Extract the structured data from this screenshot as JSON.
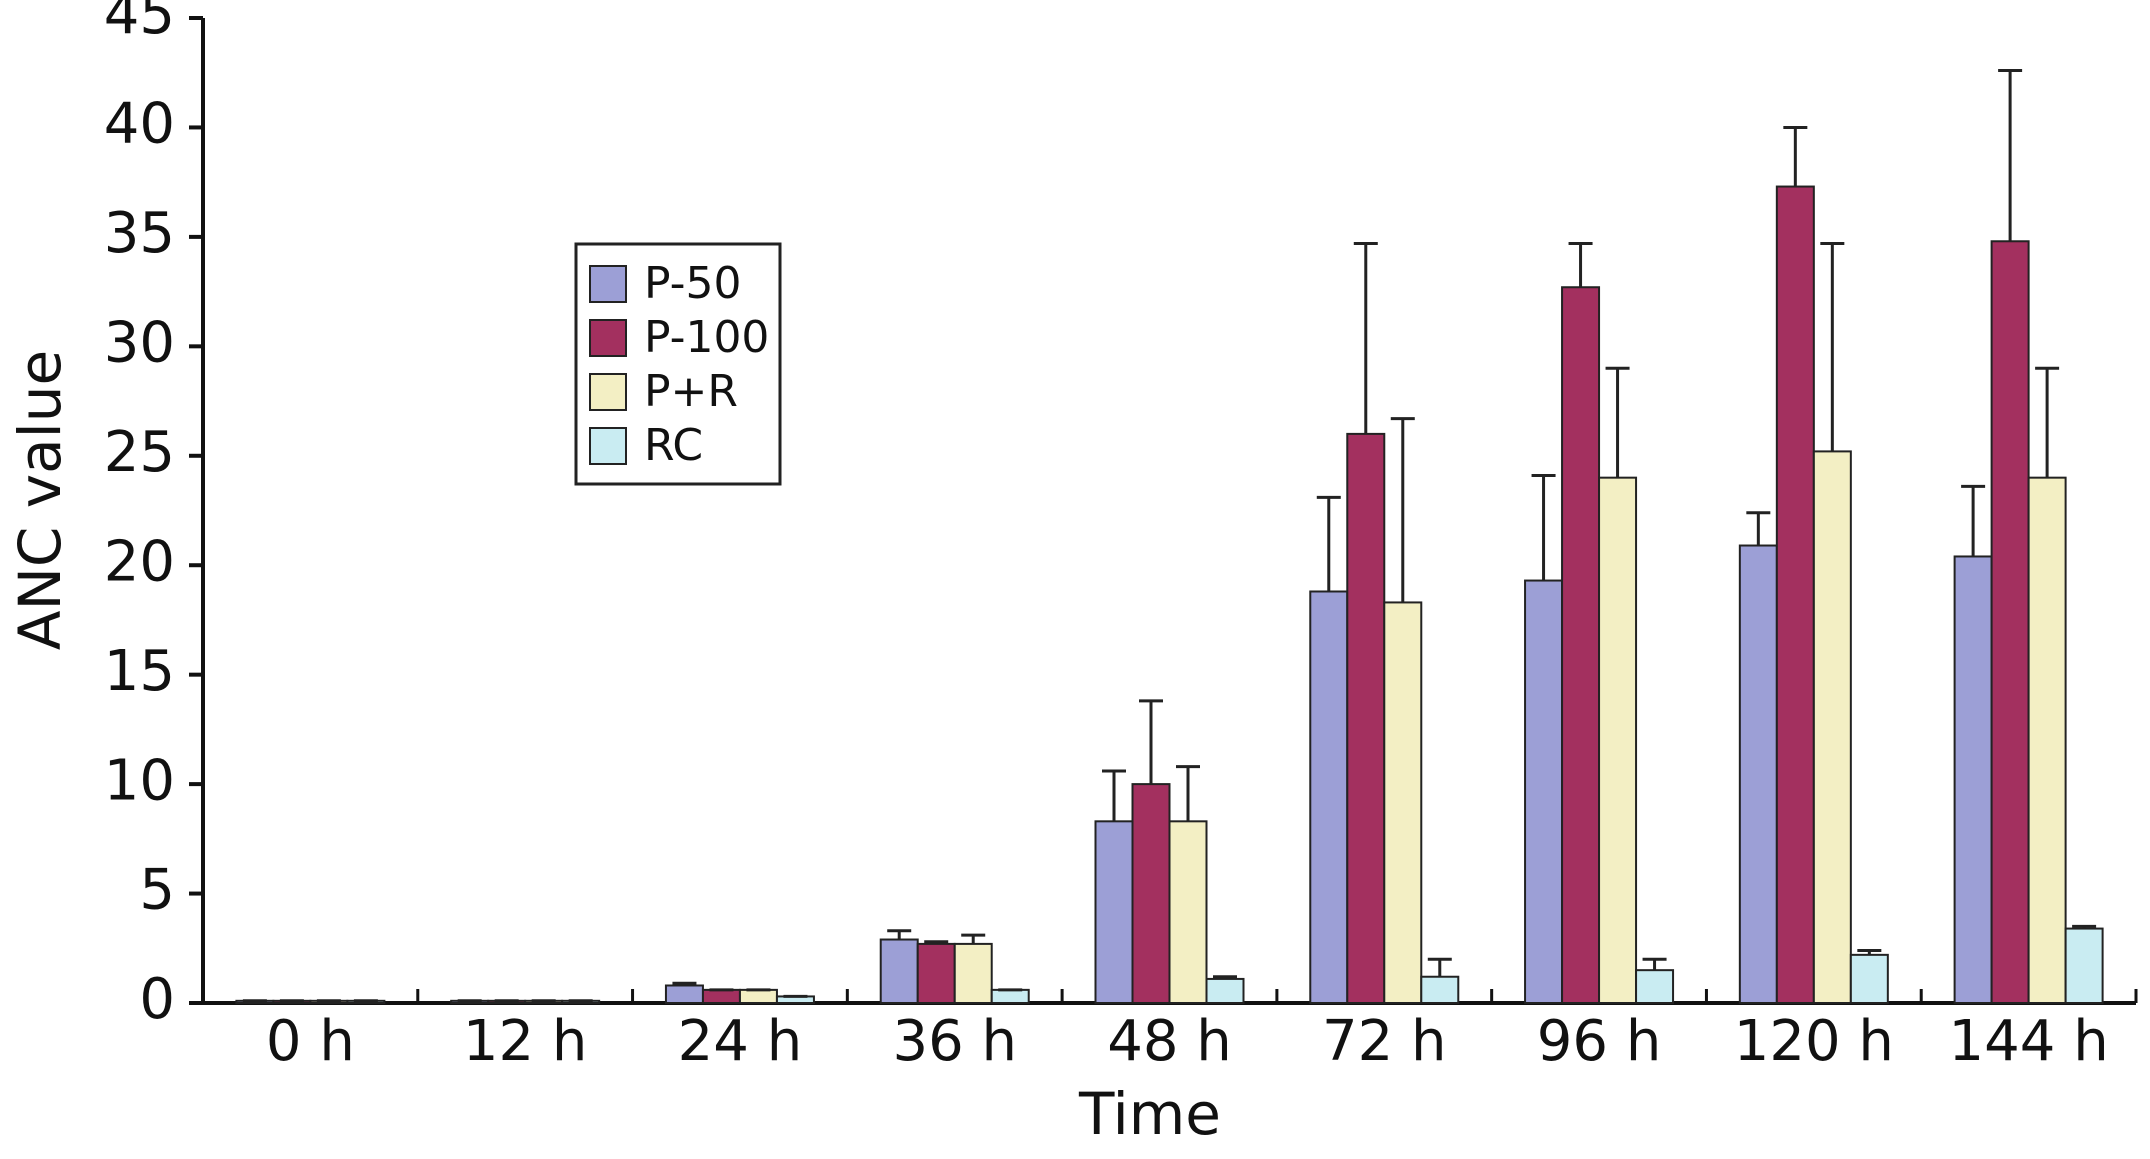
{
  "chart_data": {
    "type": "bar",
    "x_label": "Time",
    "y_label": "ANC value",
    "categories": [
      "0 h",
      "12 h",
      "24 h",
      "36 h",
      "48 h",
      "72 h",
      "96 h",
      "120 h",
      "144 h"
    ],
    "series": [
      {
        "name": "P-50",
        "color": "#9c9fd6",
        "values": [
          0.1,
          0.1,
          0.8,
          2.9,
          8.3,
          18.8,
          19.3,
          20.9,
          20.4
        ],
        "errors": [
          0,
          0,
          0.1,
          0.4,
          2.3,
          4.3,
          4.8,
          1.5,
          3.2
        ]
      },
      {
        "name": "P-100",
        "color": "#a3305f",
        "values": [
          0.1,
          0.1,
          0.6,
          2.7,
          10,
          26,
          32.7,
          37.3,
          34.8
        ],
        "errors": [
          0,
          0,
          0,
          0.1,
          3.8,
          8.7,
          2,
          2.7,
          7.8
        ]
      },
      {
        "name": "P+R",
        "color": "#f3efc4",
        "values": [
          0.1,
          0.1,
          0.6,
          2.7,
          8.3,
          18.3,
          24,
          25.2,
          24
        ],
        "errors": [
          0,
          0,
          0,
          0.4,
          2.5,
          8.4,
          5,
          9.5,
          5
        ]
      },
      {
        "name": "RC",
        "color": "#c9ecf2",
        "values": [
          0.1,
          0.1,
          0.3,
          0.6,
          1.1,
          1.2,
          1.5,
          2.2,
          3.4
        ],
        "errors": [
          0,
          0,
          0,
          0,
          0.1,
          0.8,
          0.5,
          0.2,
          0.1
        ]
      }
    ],
    "ylim": [
      0,
      45
    ],
    "yticks": [
      0,
      5,
      10,
      15,
      20,
      25,
      30,
      35,
      40,
      45
    ],
    "grid": false,
    "legend": "upper left"
  }
}
